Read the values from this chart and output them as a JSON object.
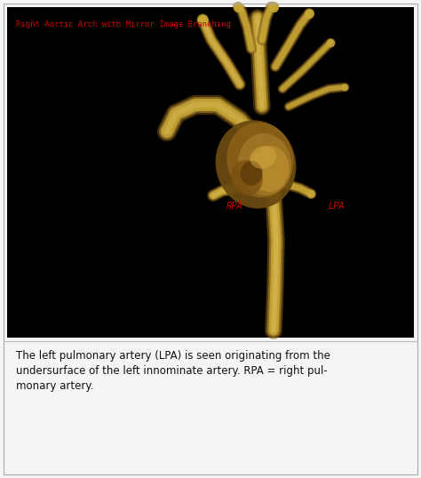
{
  "bg_color": "#f5f5f5",
  "image_bg": "#000000",
  "title_text": "Right Aortic Arch with Mirror Image Branching",
  "title_color": "#cc0000",
  "title_fontsize": 6.5,
  "label_RPA": "RPA",
  "label_LPA": "LPA",
  "label_color": "#cc0000",
  "label_fontsize": 7.5,
  "caption_line1": "The left pulmonary artery (LPA) is seen originating from the",
  "caption_line2": "undersurface of the left innominate artery. RPA = right pul-",
  "caption_line3": "monary artery.",
  "caption_fontsize": 8.5,
  "vessel_color_main": "#c8a835",
  "vessel_color_dark": "#7a5a10",
  "vessel_color_mid": "#a07828",
  "vessel_color_light": "#e0c060"
}
